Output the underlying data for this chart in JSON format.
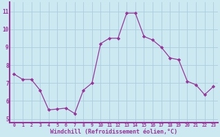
{
  "x": [
    0,
    1,
    2,
    3,
    4,
    5,
    6,
    7,
    8,
    9,
    10,
    11,
    12,
    13,
    14,
    15,
    16,
    17,
    18,
    19,
    20,
    21,
    22,
    23
  ],
  "y": [
    7.5,
    7.2,
    7.2,
    6.6,
    5.5,
    5.55,
    5.6,
    5.3,
    6.6,
    7.0,
    9.2,
    9.5,
    9.5,
    10.9,
    10.9,
    9.6,
    9.4,
    9.0,
    8.4,
    8.3,
    7.1,
    6.9,
    6.35,
    6.8
  ],
  "line_color": "#993399",
  "marker": "D",
  "marker_size": 2.2,
  "bg_color": "#cce8f0",
  "grid_color": "#aaccdd",
  "axis_color": "#993399",
  "tick_color": "#993399",
  "xlabel": "Windchill (Refroidissement éolien,°C)",
  "ylim": [
    4.8,
    11.5
  ],
  "xlim": [
    -0.5,
    23.5
  ],
  "xticks": [
    0,
    1,
    2,
    3,
    4,
    5,
    6,
    7,
    8,
    9,
    10,
    11,
    12,
    13,
    14,
    15,
    16,
    17,
    18,
    19,
    20,
    21,
    22,
    23
  ],
  "yticks": [
    5,
    6,
    7,
    8,
    9,
    10,
    11
  ]
}
